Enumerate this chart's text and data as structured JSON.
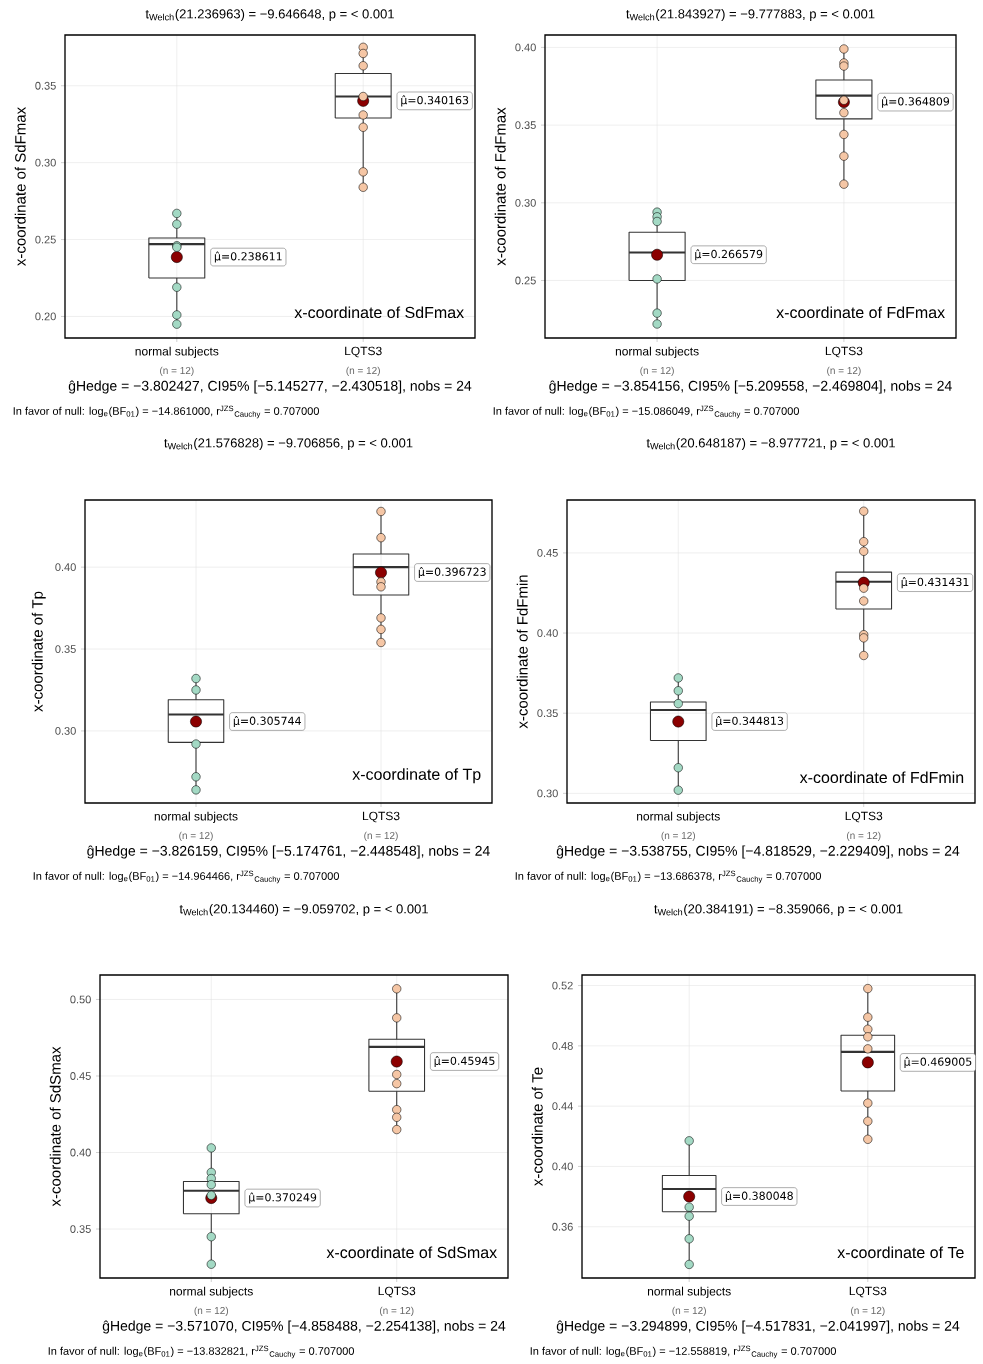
{
  "chart_data": [
    {
      "type": "box",
      "title": "t$_{Welch}$(21.236963) = −9.646648, p = < 0.001",
      "ylabel": "x-coordinate of SdFmax",
      "categories": [
        "normal subjects",
        "LQTS3"
      ],
      "boxes": [
        {
          "low": 0.195,
          "q1": 0.225,
          "median": 0.247,
          "q3": 0.251,
          "high": 0.266,
          "mean": 0.238611
        },
        {
          "low": 0.283,
          "q1": 0.329,
          "median": 0.343,
          "q3": 0.358,
          "high": 0.374,
          "mean": 0.340163
        }
      ],
      "series": [
        {
          "type": "scatter",
          "color": "#a3d9c4",
          "x": [
            "normal subjects",
            "normal subjects",
            "normal subjects",
            "normal subjects",
            "normal subjects",
            "normal subjects",
            "normal subjects"
          ],
          "values": [
            0.267,
            0.26,
            0.246,
            0.245,
            0.219,
            0.201,
            0.195
          ]
        },
        {
          "type": "scatter",
          "color": "#f5c6a5",
          "x": [
            "LQTS3",
            "LQTS3",
            "LQTS3",
            "LQTS3",
            "LQTS3",
            "LQTS3",
            "LQTS3",
            "LQTS3"
          ],
          "values": [
            0.375,
            0.371,
            0.363,
            0.343,
            0.331,
            0.323,
            0.294,
            0.284
          ]
        }
      ],
      "marker": "circle",
      "ylim": [
        0.186,
        0.383
      ],
      "yticks": [
        {
          "value": 0.2,
          "label": "0.20"
        },
        {
          "value": 0.25,
          "label": "0.25"
        },
        {
          "value": 0.3,
          "label": "0.30"
        },
        {
          "value": 0.35,
          "label": "0.35"
        }
      ],
      "grid": true,
      "annotations": [
        "μ̂=0.238611",
        "μ̂=0.340163",
        "x-coordinate of SdFmax",
        "(n = 12)",
        "(n = 12)",
        "ĝHedge = −3.802427, CI95% [−5.145277, −2.430518], nobs = 24",
        "In favor of null: log$_{e}$(BF$_{01}$) = −14.861000, r$^{JZS}$$_{Cauchy}$ = 0.707000"
      ]
    },
    {
      "type": "box",
      "title": "t$_{Welch}$(21.843927) = −9.777883, p = < 0.001",
      "ylabel": "x-coordinate of FdFmax",
      "categories": [
        "normal subjects",
        "LQTS3"
      ],
      "boxes": [
        {
          "low": 0.222,
          "q1": 0.25,
          "median": 0.268,
          "q3": 0.281,
          "high": 0.293,
          "mean": 0.266579
        },
        {
          "low": 0.312,
          "q1": 0.354,
          "median": 0.369,
          "q3": 0.379,
          "high": 0.399,
          "mean": 0.364809
        }
      ],
      "series": [
        {
          "type": "scatter",
          "color": "#a3d9c4",
          "x": [
            "normal subjects",
            "normal subjects",
            "normal subjects",
            "normal subjects",
            "normal subjects",
            "normal subjects"
          ],
          "values": [
            0.294,
            0.291,
            0.288,
            0.251,
            0.229,
            0.222
          ]
        },
        {
          "type": "scatter",
          "color": "#f5c6a5",
          "x": [
            "LQTS3",
            "LQTS3",
            "LQTS3",
            "LQTS3",
            "LQTS3",
            "LQTS3",
            "LQTS3",
            "LQTS3"
          ],
          "values": [
            0.399,
            0.39,
            0.388,
            0.366,
            0.358,
            0.344,
            0.33,
            0.312
          ]
        }
      ],
      "marker": "circle",
      "ylim": [
        0.213,
        0.408
      ],
      "yticks": [
        {
          "value": 0.25,
          "label": "0.25"
        },
        {
          "value": 0.3,
          "label": "0.30"
        },
        {
          "value": 0.35,
          "label": "0.35"
        },
        {
          "value": 0.4,
          "label": "0.40"
        }
      ],
      "grid": true,
      "annotations": [
        "μ̂=0.266579",
        "μ̂=0.364809",
        "x-coordinate of FdFmax",
        "(n = 12)",
        "(n = 12)",
        "ĝHedge = −3.854156, CI95% [−5.209558, −2.469804], nobs = 24",
        "In favor of null: log$_{e}$(BF$_{01}$) = −15.086049, r$^{JZS}$$_{Cauchy}$ = 0.707000"
      ]
    },
    {
      "type": "box",
      "title": "t$_{Welch}$(21.576828) = −9.706856, p = < 0.001",
      "ylabel": "x-coordinate of Tp",
      "categories": [
        "normal subjects",
        "LQTS3"
      ],
      "boxes": [
        {
          "low": 0.264,
          "q1": 0.293,
          "median": 0.31,
          "q3": 0.319,
          "high": 0.332,
          "mean": 0.305744
        },
        {
          "low": 0.355,
          "q1": 0.383,
          "median": 0.4,
          "q3": 0.408,
          "high": 0.433,
          "mean": 0.396723
        }
      ],
      "series": [
        {
          "type": "scatter",
          "color": "#a3d9c4",
          "x": [
            "normal subjects",
            "normal subjects",
            "normal subjects",
            "normal subjects",
            "normal subjects"
          ],
          "values": [
            0.332,
            0.325,
            0.292,
            0.272,
            0.264
          ]
        },
        {
          "type": "scatter",
          "color": "#f5c6a5",
          "x": [
            "LQTS3",
            "LQTS3",
            "LQTS3",
            "LQTS3",
            "LQTS3",
            "LQTS3",
            "LQTS3"
          ],
          "values": [
            0.434,
            0.418,
            0.391,
            0.388,
            0.369,
            0.362,
            0.354
          ]
        }
      ],
      "marker": "circle",
      "ylim": [
        0.256,
        0.441
      ],
      "yticks": [
        {
          "value": 0.3,
          "label": "0.30"
        },
        {
          "value": 0.35,
          "label": "0.35"
        },
        {
          "value": 0.4,
          "label": "0.40"
        }
      ],
      "grid": true,
      "annotations": [
        "μ̂=0.305744",
        "μ̂=0.396723",
        "x-coordinate of Tp",
        "(n = 12)",
        "(n = 12)",
        "ĝHedge = −3.826159, CI95% [−5.174761, −2.448548], nobs = 24",
        "In favor of null: log$_{e}$(BF$_{01}$) = −14.964466, r$^{JZS}$$_{Cauchy}$ = 0.707000"
      ]
    },
    {
      "type": "box",
      "title": "t$_{Welch}$(20.648187) = −8.977721, p = < 0.001",
      "ylabel": "x-coordinate of FdFmin",
      "categories": [
        "normal subjects",
        "LQTS3"
      ],
      "boxes": [
        {
          "low": 0.302,
          "q1": 0.333,
          "median": 0.352,
          "q3": 0.357,
          "high": 0.372,
          "mean": 0.344813
        },
        {
          "low": 0.387,
          "q1": 0.415,
          "median": 0.432,
          "q3": 0.438,
          "high": 0.475,
          "mean": 0.431431
        }
      ],
      "series": [
        {
          "type": "scatter",
          "color": "#a3d9c4",
          "x": [
            "normal subjects",
            "normal subjects",
            "normal subjects",
            "normal subjects",
            "normal subjects"
          ],
          "values": [
            0.372,
            0.364,
            0.356,
            0.316,
            0.302
          ]
        },
        {
          "type": "scatter",
          "color": "#f5c6a5",
          "x": [
            "LQTS3",
            "LQTS3",
            "LQTS3",
            "LQTS3",
            "LQTS3",
            "LQTS3",
            "LQTS3",
            "LQTS3"
          ],
          "values": [
            0.476,
            0.457,
            0.451,
            0.428,
            0.42,
            0.399,
            0.397,
            0.386
          ]
        }
      ],
      "marker": "circle",
      "ylim": [
        0.294,
        0.483
      ],
      "yticks": [
        {
          "value": 0.3,
          "label": "0.30"
        },
        {
          "value": 0.35,
          "label": "0.35"
        },
        {
          "value": 0.4,
          "label": "0.40"
        },
        {
          "value": 0.45,
          "label": "0.45"
        }
      ],
      "grid": true,
      "annotations": [
        "μ̂=0.344813",
        "μ̂=0.431431",
        "x-coordinate of FdFmin",
        "(n = 12)",
        "(n = 12)",
        "ĝHedge = −3.538755, CI95% [−4.818529, −2.229409], nobs = 24",
        "In favor of null: log$_{e}$(BF$_{01}$) = −13.686378, r$^{JZS}$$_{Cauchy}$ = 0.707000"
      ]
    },
    {
      "type": "box",
      "title": "t$_{Welch}$(20.134460) = −9.059702, p = < 0.001",
      "ylabel": "x-coordinate of SdSmax",
      "categories": [
        "normal subjects",
        "LQTS3"
      ],
      "boxes": [
        {
          "low": 0.327,
          "q1": 0.36,
          "median": 0.375,
          "q3": 0.381,
          "high": 0.402,
          "mean": 0.370249
        },
        {
          "low": 0.415,
          "q1": 0.44,
          "median": 0.469,
          "q3": 0.474,
          "high": 0.507,
          "mean": 0.45945
        }
      ],
      "series": [
        {
          "type": "scatter",
          "color": "#a3d9c4",
          "x": [
            "normal subjects",
            "normal subjects",
            "normal subjects",
            "normal subjects",
            "normal subjects",
            "normal subjects",
            "normal subjects"
          ],
          "values": [
            0.403,
            0.387,
            0.383,
            0.379,
            0.372,
            0.345,
            0.327
          ]
        },
        {
          "type": "scatter",
          "color": "#f5c6a5",
          "x": [
            "LQTS3",
            "LQTS3",
            "LQTS3",
            "LQTS3",
            "LQTS3",
            "LQTS3",
            "LQTS3"
          ],
          "values": [
            0.507,
            0.488,
            0.451,
            0.445,
            0.428,
            0.423,
            0.415
          ]
        }
      ],
      "marker": "circle",
      "ylim": [
        0.318,
        0.516
      ],
      "yticks": [
        {
          "value": 0.35,
          "label": "0.35"
        },
        {
          "value": 0.4,
          "label": "0.40"
        },
        {
          "value": 0.45,
          "label": "0.45"
        },
        {
          "value": 0.5,
          "label": "0.50"
        }
      ],
      "grid": true,
      "annotations": [
        "μ̂=0.370249",
        "μ̂=0.45945",
        "x-coordinate of SdSmax",
        "(n = 12)",
        "(n = 12)",
        "ĝHedge = −3.571070, CI95% [−4.858488, −2.254138], nobs = 24",
        "In favor of null: log$_{e}$(BF$_{01}$) = −13.832821, r$^{JZS}$$_{Cauchy}$ = 0.707000"
      ]
    },
    {
      "type": "box",
      "title": "t$_{Welch}$(20.384191) = −8.359066, p = < 0.001",
      "ylabel": "x-coordinate of Te",
      "categories": [
        "normal subjects",
        "LQTS3"
      ],
      "boxes": [
        {
          "low": 0.335,
          "q1": 0.37,
          "median": 0.385,
          "q3": 0.394,
          "high": 0.415,
          "mean": 0.380048
        },
        {
          "low": 0.418,
          "q1": 0.45,
          "median": 0.476,
          "q3": 0.487,
          "high": 0.518,
          "mean": 0.469005
        }
      ],
      "series": [
        {
          "type": "scatter",
          "color": "#a3d9c4",
          "x": [
            "normal subjects",
            "normal subjects",
            "normal subjects",
            "normal subjects",
            "normal subjects"
          ],
          "values": [
            0.417,
            0.373,
            0.367,
            0.352,
            0.335
          ]
        },
        {
          "type": "scatter",
          "color": "#f5c6a5",
          "x": [
            "LQTS3",
            "LQTS3",
            "LQTS3",
            "LQTS3",
            "LQTS3",
            "LQTS3",
            "LQTS3",
            "LQTS3"
          ],
          "values": [
            0.518,
            0.499,
            0.491,
            0.486,
            0.478,
            0.442,
            0.43,
            0.418
          ]
        }
      ],
      "marker": "circle",
      "ylim": [
        0.326,
        0.527
      ],
      "yticks": [
        {
          "value": 0.36,
          "label": "0.36"
        },
        {
          "value": 0.4,
          "label": "0.40"
        },
        {
          "value": 0.44,
          "label": "0.44"
        },
        {
          "value": 0.48,
          "label": "0.48"
        },
        {
          "value": 0.52,
          "label": "0.52"
        }
      ],
      "grid": true,
      "annotations": [
        "μ̂=0.380048",
        "μ̂=0.469005",
        "x-coordinate of Te",
        "(n = 12)",
        "(n = 12)",
        "ĝHedge = −3.294899, CI95% [−4.517831, −2.041997], nobs = 24",
        "In favor of null: log$_{e}$(BF$_{01}$) = −12.558819, r$^{JZS}$$_{Cauchy}$ = 0.707000"
      ]
    }
  ]
}
